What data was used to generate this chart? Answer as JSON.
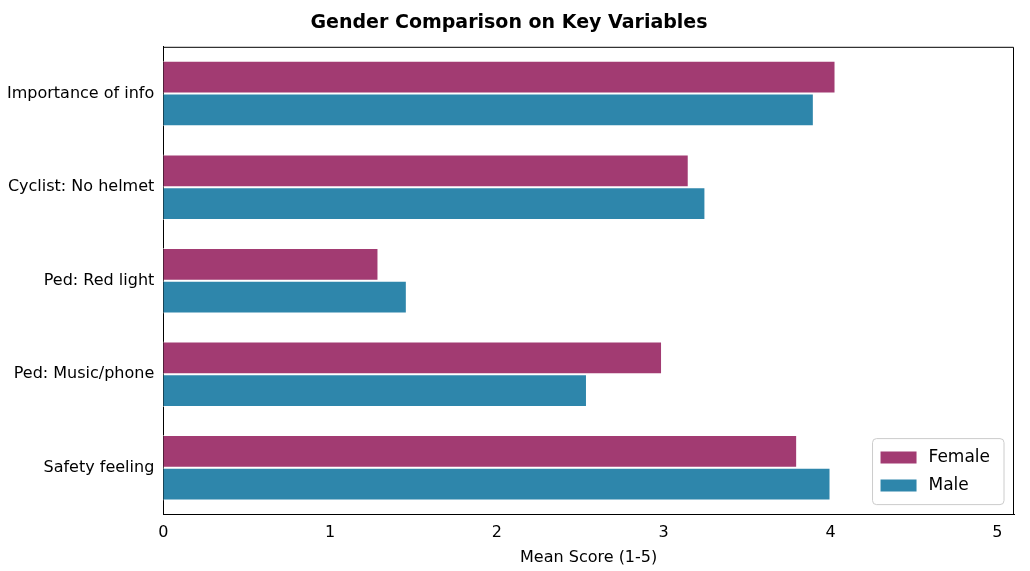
{
  "chart_data": {
    "type": "bar",
    "orientation": "horizontal",
    "title": "Gender Comparison on Key Variables",
    "xlabel": "Mean Score (1-5)",
    "categories": [
      "Importance of info",
      "Cyclist: No helmet",
      "Ped: Red light",
      "Ped: Music/phone",
      "Safety feeling"
    ],
    "series": [
      {
        "name": "Female",
        "color": "#a23b72",
        "values": [
          4.03,
          3.15,
          1.29,
          2.99,
          3.8
        ]
      },
      {
        "name": "Male",
        "color": "#2e86ab",
        "values": [
          3.9,
          3.25,
          1.46,
          2.54,
          4.0
        ]
      }
    ],
    "xlim": [
      0,
      5.1
    ],
    "xticks": [
      0,
      1,
      2,
      3,
      4,
      5
    ],
    "grid": false,
    "legend": "bottom right"
  }
}
